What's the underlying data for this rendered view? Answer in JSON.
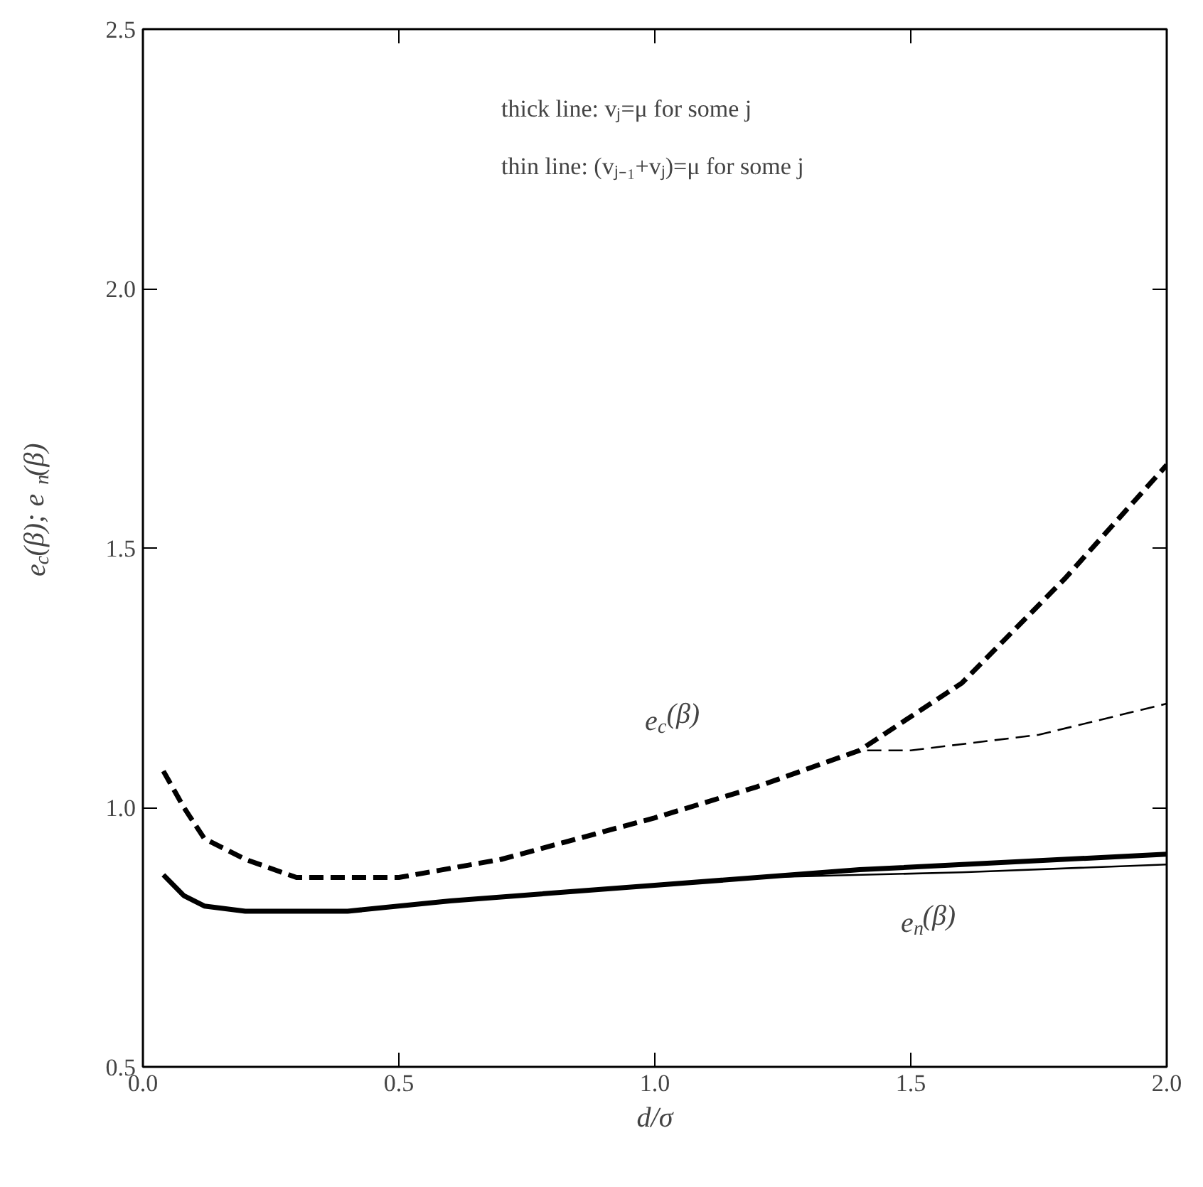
{
  "chart_data": {
    "type": "line",
    "xlabel": "d/σ",
    "ylabel": "e$_{c}$(β); e$_{n}$(β)",
    "xlim": [
      0,
      2
    ],
    "ylim": [
      0.5,
      2.5
    ],
    "xticks": [
      {
        "value": 0,
        "label": "0.0"
      },
      {
        "value": 0.5,
        "label": "0.5"
      },
      {
        "value": 1,
        "label": "1.0"
      },
      {
        "value": 1.5,
        "label": "1.5"
      },
      {
        "value": 2,
        "label": "2.0"
      }
    ],
    "yticks": [
      {
        "value": 0.5,
        "label": "0.5"
      },
      {
        "value": 1,
        "label": "1.0"
      },
      {
        "value": 1.5,
        "label": "1.5"
      },
      {
        "value": 2,
        "label": "2.0"
      },
      {
        "value": 2.5,
        "label": "2.5"
      }
    ],
    "grid": false,
    "marker": "none",
    "series": [
      {
        "color": "#000000",
        "line_style": "dashed",
        "x": [
          0.04,
          0.08,
          0.12,
          0.2,
          0.3,
          0.5,
          0.7,
          1.0,
          1.2,
          1.4,
          1.6,
          1.8,
          2.0
        ],
        "values": [
          1.07,
          1.0,
          0.94,
          0.9,
          0.865,
          0.865,
          0.9,
          0.98,
          1.04,
          1.11,
          1.24,
          1.44,
          1.66
        ]
      },
      {
        "color": "#000000",
        "line_style": "dashed",
        "x": [
          0.04,
          0.08,
          0.12,
          0.2,
          0.3,
          0.5,
          0.7,
          1.0,
          1.2,
          1.4,
          1.5,
          1.75,
          2.0
        ],
        "values": [
          1.07,
          1.0,
          0.94,
          0.9,
          0.865,
          0.865,
          0.9,
          0.98,
          1.04,
          1.11,
          1.11,
          1.14,
          1.2
        ]
      },
      {
        "color": "#000000",
        "line_style": "solid",
        "x": [
          0.04,
          0.08,
          0.12,
          0.2,
          0.4,
          0.6,
          1.0,
          1.4,
          2.0
        ],
        "values": [
          0.87,
          0.83,
          0.81,
          0.8,
          0.8,
          0.82,
          0.85,
          0.88,
          0.91
        ]
      },
      {
        "color": "#000000",
        "line_style": "solid",
        "x": [
          0.04,
          0.08,
          0.12,
          0.2,
          0.4,
          0.6,
          1.0,
          1.2,
          1.6,
          2.0
        ],
        "values": [
          0.87,
          0.83,
          0.81,
          0.8,
          0.8,
          0.82,
          0.85,
          0.865,
          0.875,
          0.89
        ]
      }
    ],
    "annotations": [
      "thick line: vⱼ=μ for some j",
      "thin line: (vⱼ₋₁+vⱼ)=μ for some j",
      "e$_{c}$(β)",
      "e$_{n}$(β)"
    ]
  }
}
